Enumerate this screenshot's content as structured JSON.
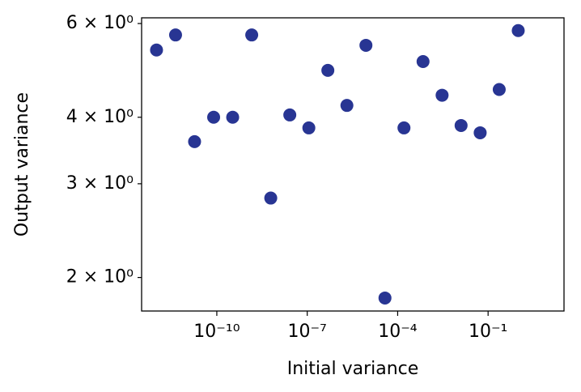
{
  "chart_data": {
    "type": "scatter",
    "x_label": "Initial variance",
    "y_label": "Output variance",
    "xscale": "log",
    "yscale": "log",
    "grid": false,
    "series": [
      {
        "color": "#283593",
        "x": [
          1e-12,
          4.28e-12,
          1.83e-11,
          7.85e-11,
          3.36e-10,
          1.44e-09,
          6.16e-09,
          2.64e-08,
          1.13e-07,
          4.83e-07,
          2.07e-06,
          8.86e-06,
          3.79e-05,
          0.000162,
          0.000695,
          0.00298,
          0.0127,
          0.0546,
          0.234,
          1
        ],
        "values": [
          5.35,
          5.71,
          3.6,
          4.0,
          4.0,
          5.71,
          2.82,
          4.04,
          3.82,
          4.9,
          4.21,
          5.46,
          1.83,
          3.82,
          5.09,
          4.4,
          3.86,
          3.74,
          4.51,
          5.82
        ]
      }
    ],
    "xlim": [
      3.2e-13,
      33
    ],
    "ylim": [
      1.73,
      6.15
    ],
    "xticks": [
      {
        "value": 1e-10,
        "label": "10⁻¹⁰"
      },
      {
        "value": 1e-07,
        "label": "10⁻⁷"
      },
      {
        "value": 0.0001,
        "label": "10⁻⁴"
      },
      {
        "value": 0.1,
        "label": "10⁻¹"
      }
    ],
    "yticks": [
      {
        "value": 2,
        "label": "2 × 10⁰"
      },
      {
        "value": 3,
        "label": "3 × 10⁰"
      },
      {
        "value": 4,
        "label": "4 × 10⁰"
      },
      {
        "value": 6,
        "label": "6 × 10⁰"
      }
    ]
  }
}
